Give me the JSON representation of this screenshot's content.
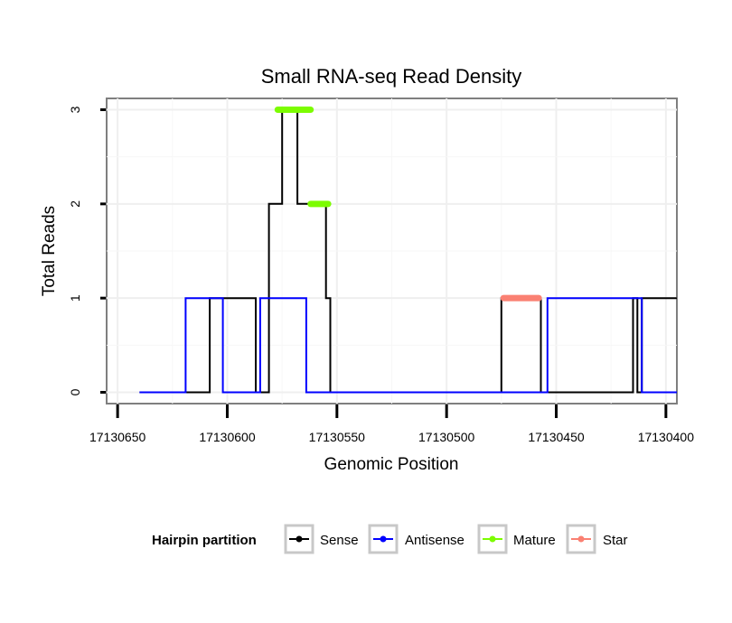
{
  "chart_data": {
    "type": "line",
    "title": "Small RNA-seq Read Density",
    "xlabel": "Genomic Position",
    "ylabel": "Total Reads",
    "x_reversed": true,
    "xlim": [
      17130655,
      17130395
    ],
    "ylim": [
      -0.12,
      3.12
    ],
    "x_ticks": [
      17130650,
      17130600,
      17130550,
      17130500,
      17130450,
      17130400
    ],
    "x_tick_labels": [
      "17130650",
      "17130600",
      "17130550",
      "17130500",
      "17130450",
      "17130400"
    ],
    "y_ticks": [
      0,
      1,
      2,
      3
    ],
    "y_tick_labels": [
      "0",
      "1",
      "2",
      "3"
    ],
    "grid": true,
    "legend": {
      "title": "Hairpin partition",
      "position": "bottom",
      "entries": [
        {
          "label": "Sense",
          "color": "#000000"
        },
        {
          "label": "Antisense",
          "color": "#0000ff"
        },
        {
          "label": "Mature",
          "color": "#7cfc00"
        },
        {
          "label": "Star",
          "color": "#fa8072"
        }
      ]
    },
    "series": [
      {
        "name": "Sense",
        "color": "#000000",
        "x": [
          17130640,
          17130608,
          17130608,
          17130587,
          17130587,
          17130581,
          17130581,
          17130575,
          17130575,
          17130568,
          17130568,
          17130555,
          17130555,
          17130553,
          17130553,
          17130549,
          17130549,
          17130475,
          17130475,
          17130457,
          17130457,
          17130415,
          17130415,
          17130413,
          17130413,
          17130411,
          17130411,
          17130392
        ],
        "y": [
          0,
          0,
          1,
          1,
          0,
          0,
          2,
          2,
          3,
          3,
          2,
          2,
          1,
          1,
          0,
          0,
          0,
          0,
          1,
          1,
          0,
          0,
          1,
          1,
          0,
          0,
          1,
          1
        ]
      },
      {
        "name": "Antisense",
        "color": "#0000ff",
        "x": [
          17130640,
          17130619,
          17130619,
          17130602,
          17130602,
          17130585,
          17130585,
          17130564,
          17130564,
          17130454,
          17130454,
          17130411,
          17130411,
          17130392
        ],
        "y": [
          0,
          0,
          1,
          1,
          0,
          0,
          1,
          1,
          0,
          0,
          1,
          1,
          0,
          0
        ]
      },
      {
        "name": "Mature",
        "color": "#7cfc00",
        "segments": [
          {
            "x_start": 17130577,
            "x_end": 17130562,
            "y": 3
          },
          {
            "x_start": 17130562,
            "x_end": 17130554,
            "y": 2
          }
        ]
      },
      {
        "name": "Star",
        "color": "#fa8072",
        "segments": [
          {
            "x_start": 17130474,
            "x_end": 17130458,
            "y": 1
          }
        ]
      }
    ]
  }
}
